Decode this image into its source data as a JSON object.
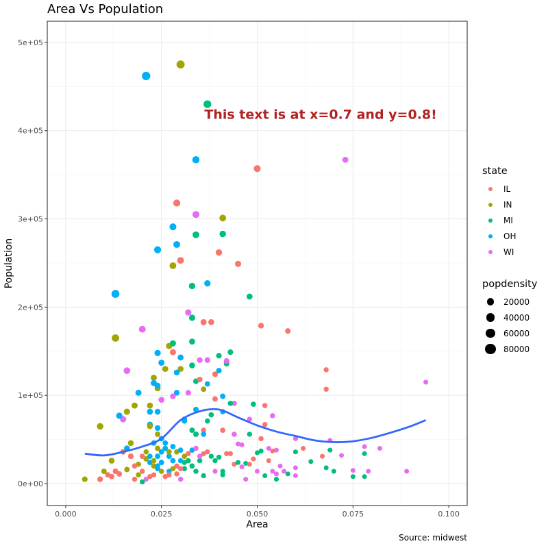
{
  "chart_data": {
    "type": "scatter",
    "title": "Area Vs Population",
    "xlabel": "Area",
    "ylabel": "Population",
    "caption": "Source: midwest",
    "annotation": {
      "text": "This text is at x=0.7 and y=0.8!",
      "color": "#B22222",
      "npc_x": 0.7,
      "npc_y": 0.8
    },
    "xlim": [
      -0.0048,
      0.1048
    ],
    "ylim": [
      -24800,
      524000
    ],
    "x_ticks": [
      "0.000",
      "0.025",
      "0.050",
      "0.075",
      "0.100"
    ],
    "x_tick_values": [
      0,
      0.025,
      0.05,
      0.075,
      0.1
    ],
    "y_ticks": [
      "0e+00",
      "1e+05",
      "2e+05",
      "3e+05",
      "4e+05",
      "5e+05"
    ],
    "y_tick_values": [
      0,
      100000,
      200000,
      300000,
      400000,
      500000
    ],
    "grid": true,
    "legend_position": "right",
    "color_legend": {
      "title": "state",
      "entries": [
        {
          "label": "IL",
          "color": "#F8766D"
        },
        {
          "label": "IN",
          "color": "#A3A500"
        },
        {
          "label": "MI",
          "color": "#00BF7D"
        },
        {
          "label": "OH",
          "color": "#00B0F6"
        },
        {
          "label": "WI",
          "color": "#E76BF3"
        }
      ]
    },
    "size_legend": {
      "title": "popdensity",
      "entries": [
        {
          "label": "20000",
          "value": 20000
        },
        {
          "label": "40000",
          "value": 40000
        },
        {
          "label": "60000",
          "value": 60000
        },
        {
          "label": "80000",
          "value": 80000
        }
      ]
    },
    "points_fields": [
      "area",
      "poptotal",
      "state",
      "popdensity"
    ],
    "points": [
      [
        0.021,
        462000,
        "OH",
        40000
      ],
      [
        0.03,
        475000,
        "IN",
        35000
      ],
      [
        0.037,
        430000,
        "MI",
        28000
      ],
      [
        0.034,
        367000,
        "OH",
        22000
      ],
      [
        0.05,
        357000,
        "IL",
        18000
      ],
      [
        0.073,
        367000,
        "WI",
        9000
      ],
      [
        0.029,
        318000,
        "IL",
        20000
      ],
      [
        0.034,
        305000,
        "WI",
        18000
      ],
      [
        0.041,
        301000,
        "IN",
        16000
      ],
      [
        0.028,
        291000,
        "OH",
        18000
      ],
      [
        0.034,
        282000,
        "MI",
        16000
      ],
      [
        0.041,
        283000,
        "MI",
        14000
      ],
      [
        0.029,
        271000,
        "OH",
        17000
      ],
      [
        0.024,
        265000,
        "OH",
        20000
      ],
      [
        0.04,
        262000,
        "IL",
        13000
      ],
      [
        0.03,
        253000,
        "IL",
        16000
      ],
      [
        0.028,
        247000,
        "IN",
        16000
      ],
      [
        0.045,
        249000,
        "IL",
        11000
      ],
      [
        0.037,
        227000,
        "OH",
        12000
      ],
      [
        0.033,
        224000,
        "MI",
        13000
      ],
      [
        0.013,
        215000,
        "OH",
        32000
      ],
      [
        0.048,
        212000,
        "MI",
        9000
      ],
      [
        0.032,
        194000,
        "WI",
        12000
      ],
      [
        0.033,
        188000,
        "MI",
        11000
      ],
      [
        0.036,
        183000,
        "IL",
        10000
      ],
      [
        0.038,
        183000,
        "IL",
        9000
      ],
      [
        0.051,
        179000,
        "IL",
        7000
      ],
      [
        0.058,
        173000,
        "IL",
        6000
      ],
      [
        0.02,
        175000,
        "WI",
        17000
      ],
      [
        0.013,
        165000,
        "IN",
        24000
      ],
      [
        0.027,
        156000,
        "IN",
        11000
      ],
      [
        0.028,
        159000,
        "MI",
        10000
      ],
      [
        0.028,
        149000,
        "IL",
        10000
      ],
      [
        0.024,
        148000,
        "OH",
        12000
      ],
      [
        0.033,
        161000,
        "MI",
        9000
      ],
      [
        0.03,
        143000,
        "OH",
        9000
      ],
      [
        0.03,
        130000,
        "IN",
        8000
      ],
      [
        0.025,
        137000,
        "OH",
        10000
      ],
      [
        0.026,
        130000,
        "IN",
        9000
      ],
      [
        0.029,
        126000,
        "OH",
        8000
      ],
      [
        0.033,
        134000,
        "MI",
        8000
      ],
      [
        0.035,
        140000,
        "WI",
        7000
      ],
      [
        0.037,
        140000,
        "WI",
        7000
      ],
      [
        0.04,
        145000,
        "MI",
        6000
      ],
      [
        0.043,
        149000,
        "MI",
        6000
      ],
      [
        0.04,
        128000,
        "OH",
        6000
      ],
      [
        0.039,
        124000,
        "IL",
        6000
      ],
      [
        0.042,
        136000,
        "MI",
        6000
      ],
      [
        0.042,
        139000,
        "WI",
        6000
      ],
      [
        0.068,
        129000,
        "IL",
        3000
      ],
      [
        0.016,
        128000,
        "WI",
        15000
      ],
      [
        0.023,
        120000,
        "IN",
        10000
      ],
      [
        0.023,
        114000,
        "OH",
        10000
      ],
      [
        0.034,
        116000,
        "MI",
        6000
      ],
      [
        0.035,
        118000,
        "IL",
        6000
      ],
      [
        0.037,
        113000,
        "OH",
        5000
      ],
      [
        0.036,
        107000,
        "IN",
        5000
      ],
      [
        0.068,
        107000,
        "IL",
        3000
      ],
      [
        0.094,
        115000,
        "WI",
        2000
      ],
      [
        0.024,
        108000,
        "IN",
        9000
      ],
      [
        0.024,
        111000,
        "OH",
        9000
      ],
      [
        0.029,
        103000,
        "OH",
        7000
      ],
      [
        0.028,
        99000,
        "WI",
        7000
      ],
      [
        0.032,
        103000,
        "WI",
        6000
      ],
      [
        0.025,
        95000,
        "WI",
        8000
      ],
      [
        0.041,
        99000,
        "OH",
        5000
      ],
      [
        0.039,
        96000,
        "IL",
        5000
      ],
      [
        0.044,
        91000,
        "WI",
        4000
      ],
      [
        0.043,
        91000,
        "MI",
        4000
      ],
      [
        0.049,
        90000,
        "MI",
        4000
      ],
      [
        0.052,
        88500,
        "IL",
        3500
      ],
      [
        0.019,
        103000,
        "OH",
        10000
      ],
      [
        0.018,
        88500,
        "IN",
        10000
      ],
      [
        0.022,
        88500,
        "IN",
        9000
      ],
      [
        0.022,
        81500,
        "OH",
        9000
      ],
      [
        0.024,
        81500,
        "OH",
        8000
      ],
      [
        0.016,
        81500,
        "IN",
        11000
      ],
      [
        0.015,
        73000,
        "WI",
        12000
      ],
      [
        0.014,
        77000,
        "OH",
        12000
      ],
      [
        0.038,
        78000,
        "IL",
        4000
      ],
      [
        0.038,
        78000,
        "MI",
        4000
      ],
      [
        0.054,
        77000,
        "WI",
        3000
      ],
      [
        0.041,
        81500,
        "OH",
        4000
      ],
      [
        0.034,
        84000,
        "OH",
        5000
      ],
      [
        0.031,
        73000,
        "OH",
        5000
      ],
      [
        0.031,
        71000,
        "OH",
        5000
      ],
      [
        0.037,
        71000,
        "MI",
        4000
      ],
      [
        0.036,
        60500,
        "IL",
        4000
      ],
      [
        0.052,
        67000,
        "IL",
        3000
      ],
      [
        0.048,
        73000,
        "WI",
        3000
      ],
      [
        0.009,
        65000,
        "IN",
        14000
      ],
      [
        0.022,
        67000,
        "OH",
        8000
      ],
      [
        0.024,
        63000,
        "OH",
        7000
      ],
      [
        0.022,
        65000,
        "IN",
        7000
      ],
      [
        0.041,
        60500,
        "IL",
        4000
      ],
      [
        0.044,
        56000,
        "WI",
        3500
      ],
      [
        0.048,
        56000,
        "MI",
        3000
      ],
      [
        0.051,
        51000,
        "IL",
        3000
      ],
      [
        0.06,
        51000,
        "WI",
        2500
      ],
      [
        0.069,
        49000,
        "WI",
        2000
      ],
      [
        0.033,
        60500,
        "MI",
        5000
      ],
      [
        0.034,
        56000,
        "MI",
        5000
      ],
      [
        0.036,
        56000,
        "OH",
        4000
      ],
      [
        0.017,
        46000,
        "IN",
        8000
      ],
      [
        0.016,
        40000,
        "OH",
        8000
      ],
      [
        0.017,
        31000,
        "IL",
        7000
      ],
      [
        0.012,
        26000,
        "IN",
        8000
      ],
      [
        0.013,
        14000,
        "IL",
        6000
      ],
      [
        0.009,
        5000,
        "IN",
        6000
      ],
      [
        0.009,
        5000,
        "IL",
        5000
      ],
      [
        0.005,
        5000,
        "IN",
        6000
      ],
      [
        0.011,
        10000,
        "IL",
        5000
      ],
      [
        0.01,
        14000,
        "IN",
        5000
      ],
      [
        0.06,
        36000,
        "MI",
        2000
      ],
      [
        0.062,
        40000,
        "IL",
        2000
      ],
      [
        0.064,
        25000,
        "MI",
        2000
      ],
      [
        0.067,
        31000,
        "IL",
        2000
      ],
      [
        0.069,
        38000,
        "MI",
        2000
      ],
      [
        0.07,
        14000,
        "MI",
        1800
      ],
      [
        0.072,
        32000,
        "WI",
        1800
      ],
      [
        0.075,
        15000,
        "WI",
        1800
      ],
      [
        0.075,
        8000,
        "MI",
        1800
      ],
      [
        0.078,
        42000,
        "WI",
        1800
      ],
      [
        0.078,
        34000,
        "MI",
        1800
      ],
      [
        0.079,
        14000,
        "WI",
        1800
      ],
      [
        0.082,
        40000,
        "WI",
        1800
      ],
      [
        0.089,
        14000,
        "WI",
        1800
      ],
      [
        0.078,
        8000,
        "MI",
        1800
      ],
      [
        0.068,
        18000,
        "MI",
        1800
      ],
      [
        0.06,
        18000,
        "WI",
        1800
      ],
      [
        0.06,
        9000,
        "WI",
        1800
      ],
      [
        0.056,
        20000,
        "WI",
        1800
      ],
      [
        0.055,
        38000,
        "WI",
        1800
      ],
      [
        0.053,
        40000,
        "WI",
        1800
      ],
      [
        0.054,
        37000,
        "IL",
        1800
      ],
      [
        0.05,
        35000,
        "MI",
        2000
      ],
      [
        0.047,
        23000,
        "MI",
        2000
      ],
      [
        0.046,
        44000,
        "WI",
        2000
      ],
      [
        0.045,
        45000,
        "WI",
        2000
      ],
      [
        0.043,
        34000,
        "IL",
        2500
      ],
      [
        0.042,
        34000,
        "IL",
        2500
      ],
      [
        0.044,
        22000,
        "IL",
        2500
      ],
      [
        0.046,
        19000,
        "WI",
        2000
      ],
      [
        0.048,
        22000,
        "IL",
        2000
      ],
      [
        0.05,
        14000,
        "WI",
        2000
      ],
      [
        0.052,
        9000,
        "MI",
        2000
      ],
      [
        0.054,
        14000,
        "WI",
        2000
      ],
      [
        0.055,
        5000,
        "MI",
        2000
      ],
      [
        0.058,
        11000,
        "MI",
        2000
      ],
      [
        0.047,
        5000,
        "WI",
        2000
      ],
      [
        0.041,
        14000,
        "MI",
        2500
      ],
      [
        0.041,
        10000,
        "MI",
        2500
      ],
      [
        0.039,
        14000,
        "WI",
        2500
      ],
      [
        0.036,
        9000,
        "MI",
        3000
      ],
      [
        0.035,
        31000,
        "WI",
        3000
      ],
      [
        0.036,
        34000,
        "IL",
        3000
      ],
      [
        0.033,
        20000,
        "MI",
        3000
      ],
      [
        0.031,
        24000,
        "MI",
        3000
      ],
      [
        0.03,
        17000,
        "IL",
        3000
      ],
      [
        0.029,
        11000,
        "IL",
        3000
      ],
      [
        0.03,
        5000,
        "WI",
        3000
      ],
      [
        0.027,
        14000,
        "OH",
        3500
      ],
      [
        0.026,
        8000,
        "IL",
        3500
      ],
      [
        0.025,
        14000,
        "IN",
        3500
      ],
      [
        0.024,
        20000,
        "OH",
        4000
      ],
      [
        0.023,
        26000,
        "IN",
        4000
      ],
      [
        0.022,
        31000,
        "OH",
        4000
      ],
      [
        0.021,
        36000,
        "IN",
        4000
      ],
      [
        0.02,
        14000,
        "IL",
        3500
      ],
      [
        0.019,
        10000,
        "IN",
        3500
      ],
      [
        0.018,
        5000,
        "IL",
        3000
      ],
      [
        0.021,
        5000,
        "WI",
        3000
      ],
      [
        0.022,
        8000,
        "IL",
        3000
      ],
      [
        0.023,
        10000,
        "IL",
        3000
      ],
      [
        0.02,
        2000,
        "MI",
        3000
      ],
      [
        0.024,
        31000,
        "OH",
        5000
      ],
      [
        0.025,
        36000,
        "OH",
        5000
      ],
      [
        0.026,
        40000,
        "OH",
        5000
      ],
      [
        0.027,
        31000,
        "OH",
        5000
      ],
      [
        0.028,
        26000,
        "OH",
        4500
      ],
      [
        0.024,
        40000,
        "IN",
        5000
      ],
      [
        0.023,
        46000,
        "OH",
        5000
      ],
      [
        0.025,
        51000,
        "OH",
        5000
      ],
      [
        0.024,
        56000,
        "IN",
        5000
      ],
      [
        0.026,
        46000,
        "OH",
        4500
      ],
      [
        0.027,
        36000,
        "IN",
        4500
      ],
      [
        0.028,
        42000,
        "OH",
        4500
      ],
      [
        0.029,
        36000,
        "IN",
        4500
      ],
      [
        0.03,
        38000,
        "OH",
        4000
      ],
      [
        0.031,
        31000,
        "IN",
        4000
      ],
      [
        0.032,
        26000,
        "MI",
        4000
      ],
      [
        0.033,
        20000,
        "MI",
        3500
      ],
      [
        0.034,
        14000,
        "MI",
        3500
      ],
      [
        0.035,
        26000,
        "MI",
        3500
      ],
      [
        0.034,
        40000,
        "WI",
        3500
      ],
      [
        0.033,
        38000,
        "OH",
        4000
      ],
      [
        0.032,
        34000,
        "IL",
        3500
      ],
      [
        0.031,
        17000,
        "MI",
        3500
      ],
      [
        0.03,
        26000,
        "OH",
        4000
      ],
      [
        0.029,
        20000,
        "IL",
        3500
      ],
      [
        0.028,
        17000,
        "IN",
        3500
      ],
      [
        0.027,
        10000,
        "IL",
        3500
      ],
      [
        0.025,
        24000,
        "OH",
        5000
      ],
      [
        0.024,
        17000,
        "OH",
        4500
      ],
      [
        0.023,
        20000,
        "IN",
        4500
      ],
      [
        0.022,
        24000,
        "OH",
        4500
      ],
      [
        0.021,
        28000,
        "IN",
        4500
      ],
      [
        0.02,
        31000,
        "IL",
        4000
      ],
      [
        0.019,
        22000,
        "IN",
        4000
      ],
      [
        0.018,
        20000,
        "IL",
        4000
      ],
      [
        0.015,
        36000,
        "IL",
        6000
      ],
      [
        0.014,
        11000,
        "IL",
        5000
      ],
      [
        0.012,
        8000,
        "IL",
        5000
      ],
      [
        0.016,
        16000,
        "IN",
        5000
      ],
      [
        0.039,
        26000,
        "MI",
        3000
      ],
      [
        0.038,
        31000,
        "MI",
        3000
      ],
      [
        0.037,
        36000,
        "IL",
        3000
      ],
      [
        0.04,
        30000,
        "MI",
        3000
      ],
      [
        0.045,
        24000,
        "MI",
        2500
      ],
      [
        0.049,
        28000,
        "IL",
        2500
      ],
      [
        0.051,
        37000,
        "MI",
        2500
      ],
      [
        0.053,
        26000,
        "IL",
        2000
      ],
      [
        0.055,
        11000,
        "WI",
        2000
      ],
      [
        0.057,
        14000,
        "WI",
        2000
      ]
    ],
    "smooth": {
      "method": "loess",
      "color": "#3366FF",
      "x": [
        0.005,
        0.01,
        0.015,
        0.02,
        0.025,
        0.03,
        0.035,
        0.04,
        0.045,
        0.05,
        0.055,
        0.06,
        0.065,
        0.07,
        0.075,
        0.08,
        0.085,
        0.09,
        0.094
      ],
      "y": [
        34000,
        32000,
        36000,
        42000,
        51000,
        72000,
        82000,
        84000,
        75000,
        66000,
        59000,
        54000,
        49000,
        47000,
        48000,
        52000,
        58000,
        65000,
        72000
      ]
    }
  }
}
